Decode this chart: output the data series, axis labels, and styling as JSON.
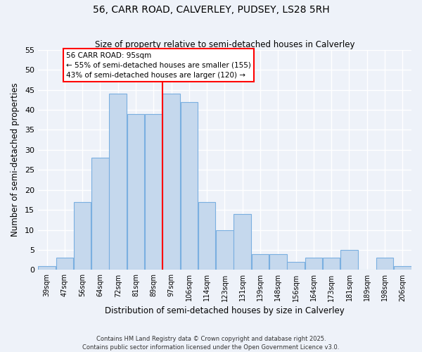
{
  "title": "56, CARR ROAD, CALVERLEY, PUDSEY, LS28 5RH",
  "subtitle": "Size of property relative to semi-detached houses in Calverley",
  "xlabel": "Distribution of semi-detached houses by size in Calverley",
  "ylabel": "Number of semi-detached properties",
  "bin_labels": [
    "39sqm",
    "47sqm",
    "56sqm",
    "64sqm",
    "72sqm",
    "81sqm",
    "89sqm",
    "97sqm",
    "106sqm",
    "114sqm",
    "123sqm",
    "131sqm",
    "139sqm",
    "148sqm",
    "156sqm",
    "164sqm",
    "173sqm",
    "181sqm",
    "189sqm",
    "198sqm",
    "206sqm"
  ],
  "bar_values": [
    1,
    3,
    17,
    28,
    44,
    39,
    39,
    44,
    42,
    17,
    10,
    14,
    4,
    4,
    2,
    3,
    3,
    5,
    0,
    3,
    1
  ],
  "bar_color": "#c5d8ed",
  "bar_edge_color": "#7aafe0",
  "vline_x_index": 7,
  "vline_color": "red",
  "annotation_title": "56 CARR ROAD: 95sqm",
  "annotation_line1": "← 55% of semi-detached houses are smaller (155)",
  "annotation_line2": "43% of semi-detached houses are larger (120) →",
  "annotation_box_color": "#ffffff",
  "annotation_box_edge": "red",
  "ylim": [
    0,
    55
  ],
  "yticks": [
    0,
    5,
    10,
    15,
    20,
    25,
    30,
    35,
    40,
    45,
    50,
    55
  ],
  "footnote1": "Contains HM Land Registry data © Crown copyright and database right 2025.",
  "footnote2": "Contains public sector information licensed under the Open Government Licence v3.0.",
  "bg_color": "#eef2f9"
}
